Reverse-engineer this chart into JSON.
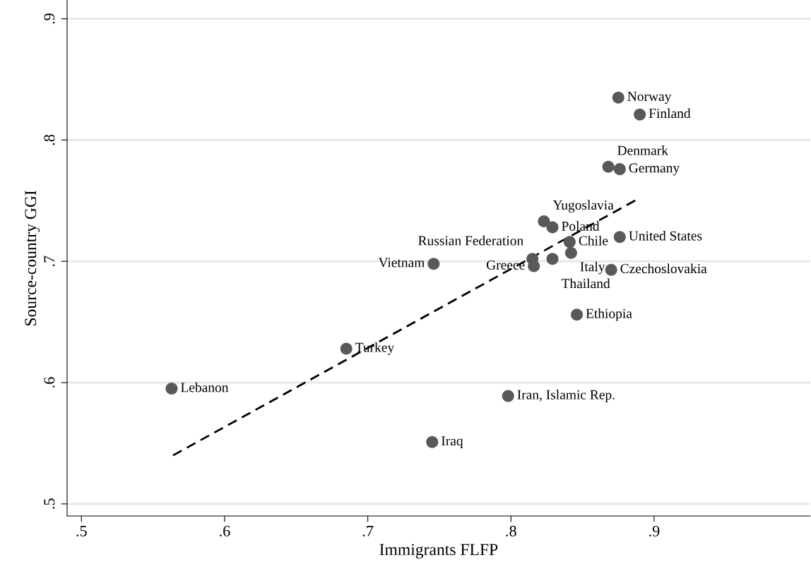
{
  "chart_data": {
    "type": "scatter",
    "xlabel": "Immigrants FLFP",
    "ylabel": "Source-country GGI",
    "xlim": [
      0.49,
      1.009
    ],
    "ylim": [
      0.49,
      0.915
    ],
    "xticks": [
      {
        "value": 0.5,
        "label": ".5"
      },
      {
        "value": 0.6,
        "label": ".6"
      },
      {
        "value": 0.7,
        "label": ".7"
      },
      {
        "value": 0.8,
        "label": ".8"
      },
      {
        "value": 0.9,
        "label": ".9"
      }
    ],
    "yticks": [
      {
        "value": 0.5,
        "label": ".5"
      },
      {
        "value": 0.6,
        "label": ".6"
      },
      {
        "value": 0.7,
        "label": ".7"
      },
      {
        "value": 0.8,
        "label": ".8"
      },
      {
        "value": 0.9,
        "label": ".9"
      }
    ],
    "grid": "y",
    "marker": "circle",
    "legend": false,
    "series": [
      {
        "color": "#595959",
        "x": [
          0.875,
          0.89,
          0.868,
          0.876,
          0.823,
          0.829,
          0.841,
          0.876,
          0.842,
          0.829,
          0.815,
          0.816,
          0.746,
          0.87,
          0.846,
          0.685,
          0.563,
          0.798,
          0.745
        ],
        "values": [
          0.835,
          0.821,
          0.778,
          0.776,
          0.733,
          0.728,
          0.716,
          0.72,
          0.707,
          0.702,
          0.702,
          0.696,
          0.698,
          0.693,
          0.656,
          0.628,
          0.595,
          0.589,
          0.551
        ]
      },
      {
        "type": "line",
        "color": "#000000",
        "line_style": "dashed",
        "marker": "none",
        "x": [
          0.564,
          0.888
        ],
        "values": [
          0.54,
          0.751
        ]
      }
    ],
    "annotations": [
      {
        "text": "Norway",
        "x": 0.875,
        "y": 0.835
      },
      {
        "text": "Finland",
        "x": 0.89,
        "y": 0.821
      },
      {
        "text": "Denmark",
        "x": 0.868,
        "y": 0.778
      },
      {
        "text": "Germany",
        "x": 0.876,
        "y": 0.776
      },
      {
        "text": "Yugoslavia",
        "x": 0.823,
        "y": 0.733
      },
      {
        "text": "Poland",
        "x": 0.829,
        "y": 0.728
      },
      {
        "text": "Chile",
        "x": 0.841,
        "y": 0.716
      },
      {
        "text": "United States",
        "x": 0.876,
        "y": 0.72
      },
      {
        "text": "Italy",
        "x": 0.842,
        "y": 0.707
      },
      {
        "text": "Thailand",
        "x": 0.829,
        "y": 0.702
      },
      {
        "text": "Russian Federation",
        "x": 0.815,
        "y": 0.702
      },
      {
        "text": "Greece",
        "x": 0.816,
        "y": 0.696
      },
      {
        "text": "Vietnam",
        "x": 0.746,
        "y": 0.698
      },
      {
        "text": "Czechoslovakia",
        "x": 0.87,
        "y": 0.693
      },
      {
        "text": "Ethiopia",
        "x": 0.846,
        "y": 0.656
      },
      {
        "text": "Turkey",
        "x": 0.685,
        "y": 0.628
      },
      {
        "text": "Lebanon",
        "x": 0.563,
        "y": 0.595
      },
      {
        "text": "Iran, Islamic Rep.",
        "x": 0.798,
        "y": 0.589
      },
      {
        "text": "Iraq",
        "x": 0.745,
        "y": 0.551
      }
    ]
  }
}
